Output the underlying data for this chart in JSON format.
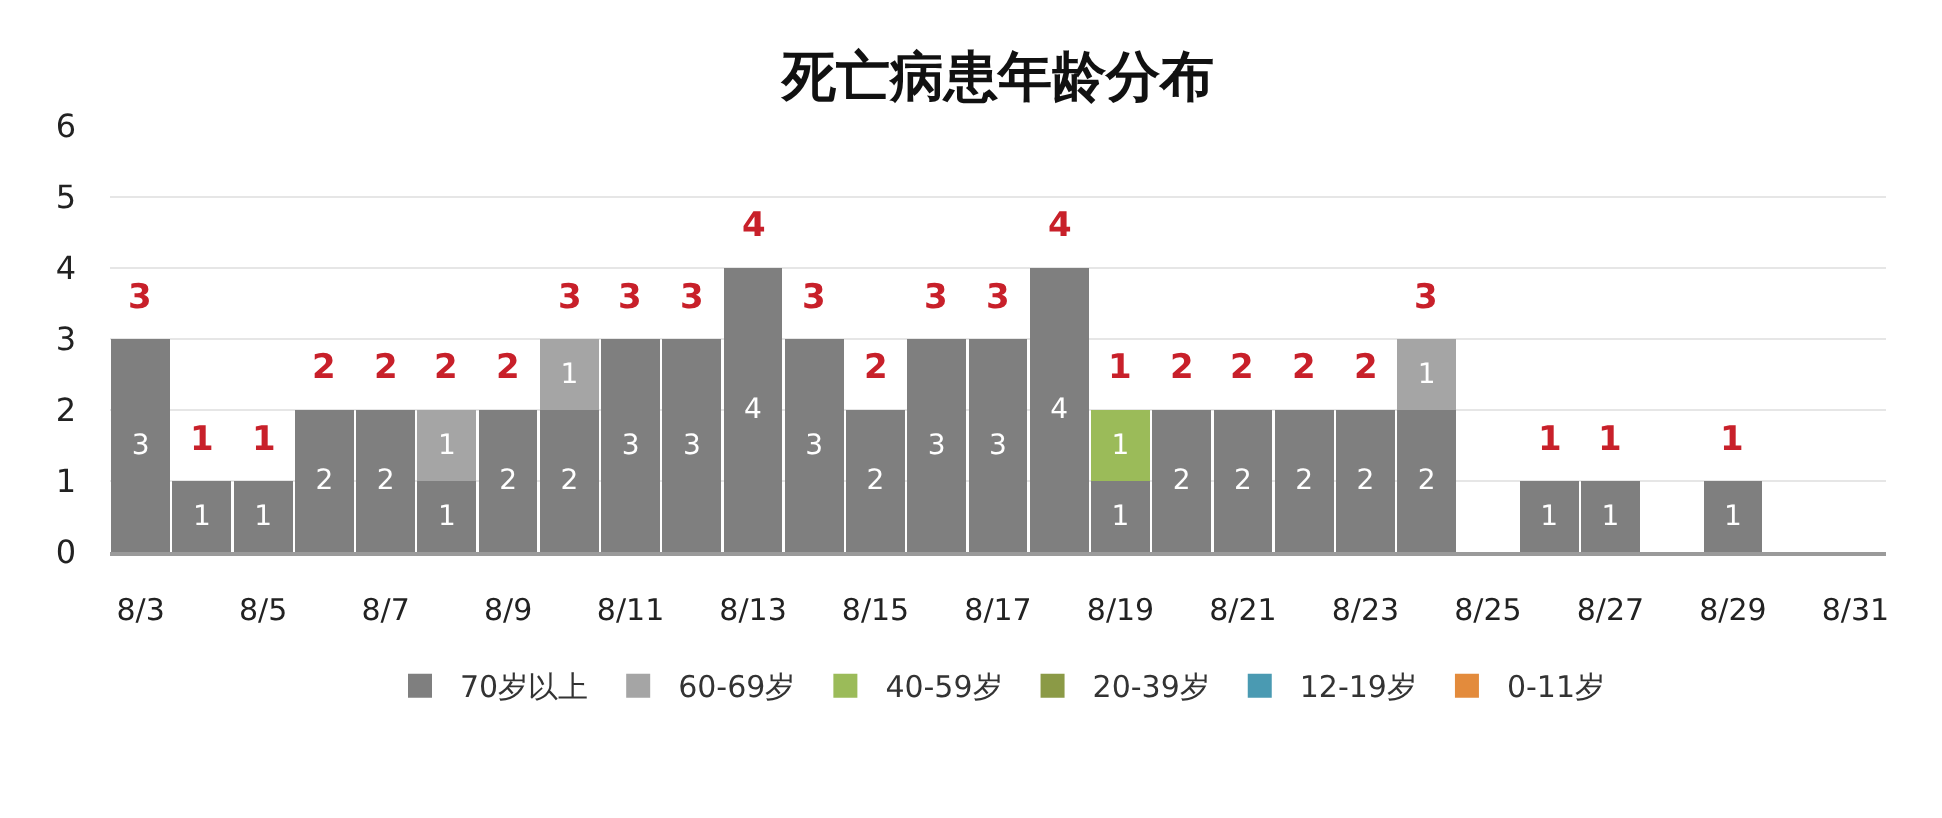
{
  "chart_data": {
    "type": "bar",
    "title": "死亡病患年龄分布",
    "stacked": true,
    "categories": [
      "8/3",
      null,
      "8/5",
      null,
      "8/7",
      null,
      "8/9",
      null,
      "8/11",
      null,
      "8/13",
      null,
      "8/15",
      null,
      "8/17",
      null,
      "8/19",
      null,
      "8/21",
      null,
      "8/23",
      null,
      "8/25",
      null,
      "8/27",
      null,
      "8/29",
      null,
      "8/31"
    ],
    "series": [
      {
        "name": "70岁以上",
        "color": "#7f7f7f",
        "values": [
          3,
          1,
          1,
          2,
          2,
          1,
          2,
          2,
          3,
          3,
          4,
          3,
          2,
          3,
          3,
          4,
          1,
          2,
          2,
          2,
          2,
          2,
          0,
          1,
          1,
          0,
          1,
          0,
          0
        ],
        "value_labels": [
          "3",
          "1",
          "1",
          "2",
          "2",
          "1",
          "2",
          "2",
          "3",
          "3",
          "4",
          "3",
          "2",
          "3",
          "3",
          "4",
          "1",
          "2",
          "2",
          "2",
          "2",
          "2",
          null,
          "1",
          "1",
          null,
          "1",
          null,
          null
        ]
      },
      {
        "name": "60-69岁",
        "color": "#a5a5a5",
        "values": [
          0,
          0,
          0,
          0,
          0,
          1,
          0,
          1,
          0,
          0,
          0,
          0,
          0,
          0,
          0,
          0,
          0,
          0,
          0,
          0,
          0,
          1,
          0,
          0,
          0,
          0,
          0,
          0,
          0
        ],
        "value_labels": [
          null,
          null,
          null,
          null,
          null,
          "1",
          null,
          "1",
          null,
          null,
          null,
          null,
          null,
          null,
          null,
          null,
          null,
          null,
          null,
          null,
          null,
          "1",
          null,
          null,
          null,
          null,
          null,
          null,
          null
        ]
      },
      {
        "name": "40-59岁",
        "color": "#9bbb59",
        "values": [
          0,
          0,
          0,
          0,
          0,
          0,
          0,
          0,
          0,
          0,
          0,
          0,
          0,
          0,
          0,
          0,
          1,
          0,
          0,
          0,
          0,
          0,
          0,
          0,
          0,
          0,
          0,
          0,
          0
        ],
        "value_labels": [
          null,
          null,
          null,
          null,
          null,
          null,
          null,
          null,
          null,
          null,
          null,
          null,
          null,
          null,
          null,
          null,
          "1",
          null,
          null,
          null,
          null,
          null,
          null,
          null,
          null,
          null,
          null,
          null,
          null
        ]
      },
      {
        "name": "20-39岁",
        "color": "#8b9a46",
        "values": [
          0,
          0,
          0,
          0,
          0,
          0,
          0,
          0,
          0,
          0,
          0,
          0,
          0,
          0,
          0,
          0,
          0,
          0,
          0,
          0,
          0,
          0,
          0,
          0,
          0,
          0,
          0,
          0,
          0
        ]
      },
      {
        "name": "12-19岁",
        "color": "#4a9ab2",
        "values": [
          0,
          0,
          0,
          0,
          0,
          0,
          0,
          0,
          0,
          0,
          0,
          0,
          0,
          0,
          0,
          0,
          0,
          0,
          0,
          0,
          0,
          0,
          0,
          0,
          0,
          0,
          0,
          0,
          0
        ]
      },
      {
        "name": "0-11岁",
        "color": "#e38b3c",
        "values": [
          0,
          0,
          0,
          0,
          0,
          0,
          0,
          0,
          0,
          0,
          0,
          0,
          0,
          0,
          0,
          0,
          0,
          0,
          0,
          0,
          0,
          0,
          0,
          0,
          0,
          0,
          0,
          0,
          0
        ]
      }
    ],
    "totals": [
      "3",
      "1",
      "1",
      "2",
      "2",
      "2",
      "2",
      "3",
      "3",
      "3",
      "4",
      "3",
      "2",
      "3",
      "3",
      "4",
      "1",
      "2",
      "2",
      "2",
      "2",
      "3",
      null,
      "1",
      "1",
      null,
      "1",
      null,
      null
    ],
    "ylim": [
      0,
      6
    ],
    "yticks": [
      0,
      1,
      2,
      3,
      4,
      5,
      6
    ],
    "grid": "y",
    "legend": "bottom"
  }
}
